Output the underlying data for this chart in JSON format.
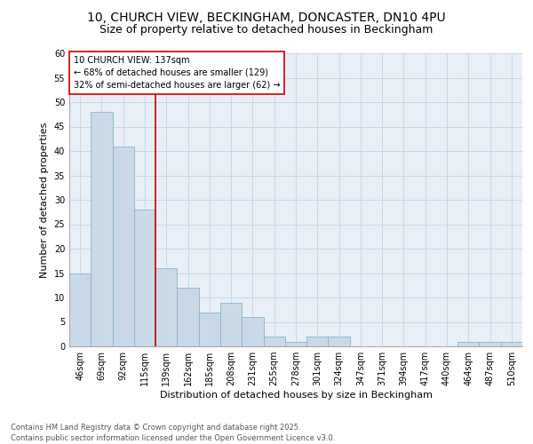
{
  "title_line1": "10, CHURCH VIEW, BECKINGHAM, DONCASTER, DN10 4PU",
  "title_line2": "Size of property relative to detached houses in Beckingham",
  "xlabel": "Distribution of detached houses by size in Beckingham",
  "ylabel": "Number of detached properties",
  "bar_values": [
    15,
    48,
    41,
    28,
    16,
    12,
    7,
    9,
    6,
    2,
    1,
    2,
    2,
    0,
    0,
    0,
    0,
    0,
    1,
    1,
    1
  ],
  "bin_labels": [
    "46sqm",
    "69sqm",
    "92sqm",
    "115sqm",
    "139sqm",
    "162sqm",
    "185sqm",
    "208sqm",
    "231sqm",
    "255sqm",
    "278sqm",
    "301sqm",
    "324sqm",
    "347sqm",
    "371sqm",
    "394sqm",
    "417sqm",
    "440sqm",
    "464sqm",
    "487sqm",
    "510sqm"
  ],
  "bar_color": "#c9d9e8",
  "bar_edgecolor": "#8ab4cc",
  "grid_color": "#c8d8e8",
  "background_color": "#e8eff7",
  "vline_color": "#cc0000",
  "annotation_text": "10 CHURCH VIEW: 137sqm\n← 68% of detached houses are smaller (129)\n32% of semi-detached houses are larger (62) →",
  "annotation_box_edgecolor": "#cc0000",
  "ylim": [
    0,
    60
  ],
  "yticks": [
    0,
    5,
    10,
    15,
    20,
    25,
    30,
    35,
    40,
    45,
    50,
    55,
    60
  ],
  "footer_text": "Contains HM Land Registry data © Crown copyright and database right 2025.\nContains public sector information licensed under the Open Government Licence v3.0.",
  "title_fontsize": 10,
  "subtitle_fontsize": 9,
  "axis_label_fontsize": 8,
  "tick_fontsize": 7,
  "annotation_fontsize": 7,
  "footer_fontsize": 6
}
